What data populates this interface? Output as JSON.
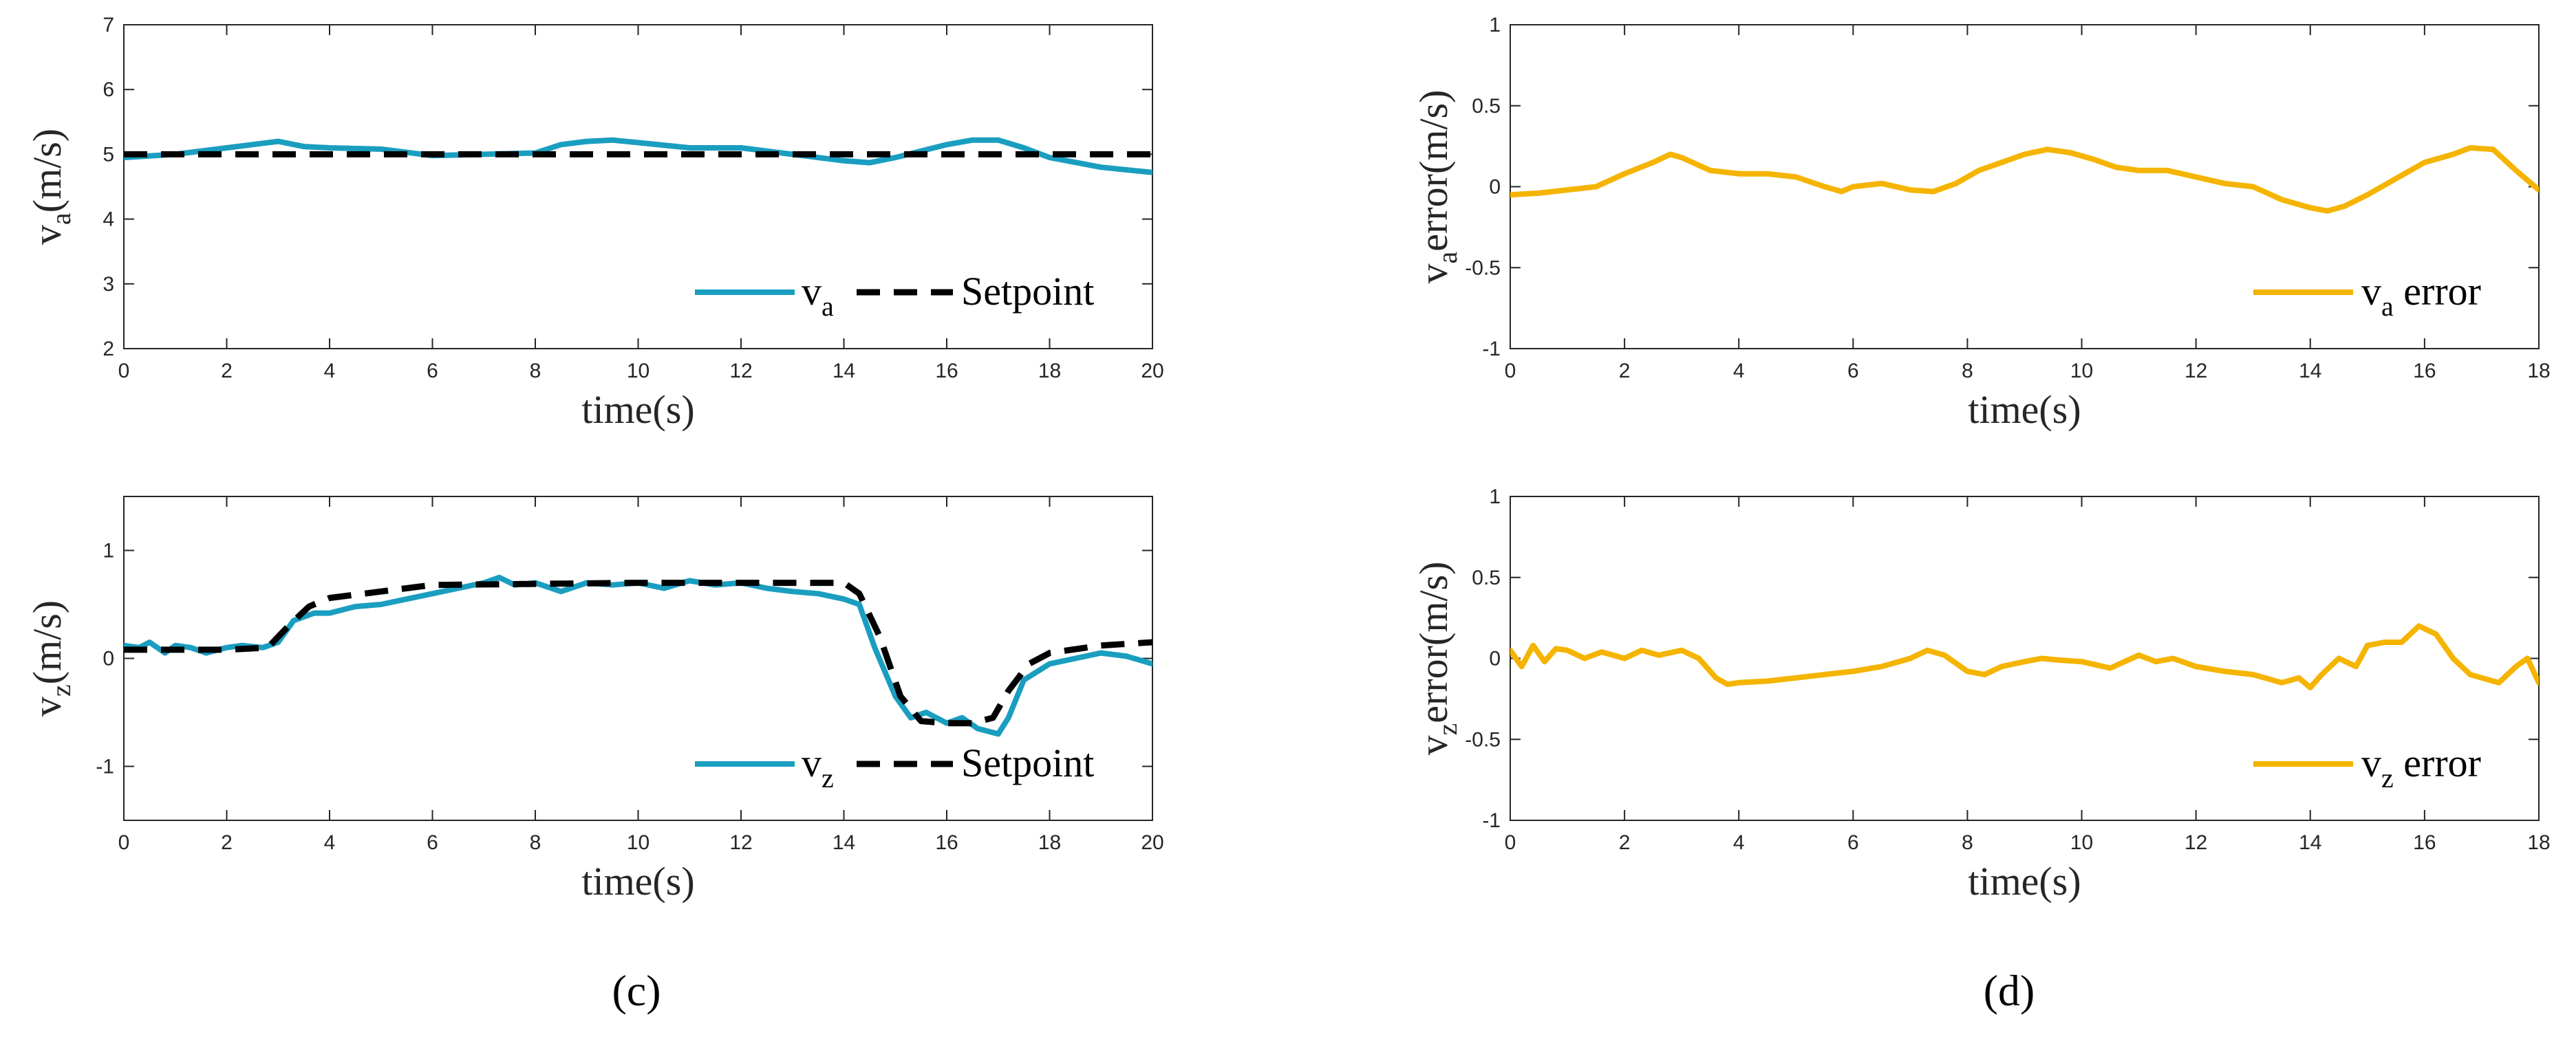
{
  "colors": {
    "measured": "#1a9ec0",
    "setpoint": "#000000",
    "error": "#f5b400",
    "axis": "#262626"
  },
  "panel_labels": {
    "c": "(c)",
    "d": "(d)"
  },
  "chart_data": [
    {
      "id": "c-top",
      "type": "line",
      "xlabel": "time(s)",
      "ylabel_main": "v",
      "ylabel_sub": "a",
      "ylabel_unit": "(m/s)",
      "xlim": [
        0,
        20
      ],
      "ylim": [
        2,
        7
      ],
      "xticks": [
        0,
        2,
        4,
        6,
        8,
        10,
        12,
        14,
        16,
        18,
        20
      ],
      "yticks": [
        2,
        3,
        4,
        5,
        6,
        7
      ],
      "legend": {
        "position": "bottom-right",
        "entries": [
          {
            "series": 0,
            "label": "v",
            "sub": "a"
          },
          {
            "series": 1,
            "label": "Setpoint",
            "sub": ""
          }
        ]
      },
      "series": [
        {
          "name": "v_a",
          "style": "solid",
          "color_key": "measured",
          "x": [
            0,
            1,
            2,
            2.5,
            3,
            3.5,
            4,
            5,
            6,
            7,
            8,
            8.5,
            9,
            9.5,
            10,
            11,
            12,
            13,
            14,
            14.5,
            15,
            16,
            16.5,
            17,
            17.5,
            18,
            19,
            20
          ],
          "y": [
            4.95,
            5.0,
            5.1,
            5.15,
            5.2,
            5.12,
            5.1,
            5.08,
            4.98,
            5.0,
            5.02,
            5.15,
            5.2,
            5.22,
            5.18,
            5.1,
            5.1,
            5.0,
            4.9,
            4.87,
            4.95,
            5.15,
            5.22,
            5.22,
            5.1,
            4.95,
            4.8,
            4.72
          ]
        },
        {
          "name": "Setpoint",
          "style": "dashed",
          "color_key": "setpoint",
          "x": [
            0,
            20
          ],
          "y": [
            5.0,
            5.0
          ]
        }
      ]
    },
    {
      "id": "c-bottom",
      "type": "line",
      "xlabel": "time(s)",
      "ylabel_main": "v",
      "ylabel_sub": "z",
      "ylabel_unit": "(m/s)",
      "xlim": [
        0,
        20
      ],
      "ylim": [
        -1.5,
        1.5
      ],
      "xticks": [
        0,
        2,
        4,
        6,
        8,
        10,
        12,
        14,
        16,
        18,
        20
      ],
      "yticks": [
        -1,
        0,
        1
      ],
      "legend": {
        "position": "bottom-right",
        "entries": [
          {
            "series": 0,
            "label": "v",
            "sub": "z"
          },
          {
            "series": 1,
            "label": "Setpoint",
            "sub": ""
          }
        ]
      },
      "series": [
        {
          "name": "v_z",
          "style": "solid",
          "color_key": "measured",
          "x": [
            0,
            0.3,
            0.5,
            0.8,
            1,
            1.3,
            1.6,
            2,
            2.3,
            2.7,
            3,
            3.3,
            3.7,
            4,
            4.5,
            5,
            5.5,
            6,
            6.5,
            7,
            7.3,
            7.6,
            8,
            8.5,
            9,
            9.5,
            10,
            10.5,
            11,
            11.5,
            12,
            12.5,
            13,
            13.5,
            14,
            14.3,
            14.6,
            15,
            15.3,
            15.6,
            16,
            16.3,
            16.6,
            17,
            17.2,
            17.5,
            18,
            18.5,
            19,
            19.5,
            20
          ],
          "y": [
            0.12,
            0.1,
            0.15,
            0.05,
            0.12,
            0.1,
            0.05,
            0.1,
            0.12,
            0.1,
            0.15,
            0.35,
            0.42,
            0.42,
            0.48,
            0.5,
            0.55,
            0.6,
            0.65,
            0.7,
            0.75,
            0.68,
            0.7,
            0.62,
            0.7,
            0.68,
            0.7,
            0.65,
            0.72,
            0.68,
            0.7,
            0.65,
            0.62,
            0.6,
            0.55,
            0.5,
            0.1,
            -0.35,
            -0.55,
            -0.5,
            -0.6,
            -0.55,
            -0.65,
            -0.7,
            -0.55,
            -0.2,
            -0.05,
            0.0,
            0.05,
            0.02,
            -0.05
          ]
        },
        {
          "name": "Setpoint",
          "style": "dashed",
          "color_key": "setpoint",
          "x": [
            0,
            1,
            2,
            2.8,
            3.2,
            3.6,
            4,
            5,
            6,
            10,
            14,
            14.3,
            14.7,
            15.1,
            15.5,
            16,
            16.5,
            16.9,
            17.2,
            17.6,
            18,
            19,
            20
          ],
          "y": [
            0.08,
            0.08,
            0.08,
            0.1,
            0.3,
            0.48,
            0.56,
            0.62,
            0.68,
            0.7,
            0.7,
            0.6,
            0.2,
            -0.35,
            -0.58,
            -0.6,
            -0.6,
            -0.55,
            -0.3,
            -0.05,
            0.05,
            0.12,
            0.15
          ]
        }
      ]
    },
    {
      "id": "d-top",
      "type": "line",
      "xlabel": "time(s)",
      "ylabel_main": "v",
      "ylabel_sub": "a",
      "ylabel_unit": "error(m/s)",
      "xlim": [
        0,
        18
      ],
      "ylim": [
        -1,
        1
      ],
      "xticks": [
        0,
        2,
        4,
        6,
        8,
        10,
        12,
        14,
        16,
        18
      ],
      "yticks": [
        -1,
        -0.5,
        0,
        0.5,
        1
      ],
      "legend": {
        "position": "bottom-right",
        "entries": [
          {
            "series": 0,
            "label": "v",
            "sub": "a",
            "after": " error"
          }
        ]
      },
      "series": [
        {
          "name": "v_a error",
          "style": "solid",
          "color_key": "error",
          "x": [
            0,
            0.5,
            1,
            1.5,
            2,
            2.5,
            2.8,
            3,
            3.5,
            4,
            4.5,
            5,
            5.5,
            5.8,
            6,
            6.5,
            7,
            7.4,
            7.8,
            8.2,
            8.6,
            9,
            9.4,
            9.8,
            10.2,
            10.6,
            11,
            11.5,
            12,
            12.5,
            13,
            13.5,
            14,
            14.3,
            14.6,
            15,
            15.5,
            16,
            16.5,
            16.8,
            17.2,
            17.6,
            18
          ],
          "y": [
            -0.05,
            -0.04,
            -0.02,
            0.0,
            0.08,
            0.15,
            0.2,
            0.18,
            0.1,
            0.08,
            0.08,
            0.06,
            0.0,
            -0.03,
            0.0,
            0.02,
            -0.02,
            -0.03,
            0.02,
            0.1,
            0.15,
            0.2,
            0.23,
            0.21,
            0.17,
            0.12,
            0.1,
            0.1,
            0.06,
            0.02,
            0.0,
            -0.08,
            -0.13,
            -0.15,
            -0.12,
            -0.05,
            0.05,
            0.15,
            0.2,
            0.24,
            0.23,
            0.1,
            -0.02
          ]
        }
      ]
    },
    {
      "id": "d-bottom",
      "type": "line",
      "xlabel": "time(s)",
      "ylabel_main": "v",
      "ylabel_sub": "z",
      "ylabel_unit": "error(m/s)",
      "xlim": [
        0,
        18
      ],
      "ylim": [
        -1,
        1
      ],
      "xticks": [
        0,
        2,
        4,
        6,
        8,
        10,
        12,
        14,
        16,
        18
      ],
      "yticks": [
        -1,
        -0.5,
        0,
        0.5,
        1
      ],
      "legend": {
        "position": "bottom-right",
        "entries": [
          {
            "series": 0,
            "label": "v",
            "sub": "z",
            "after": " error"
          }
        ]
      },
      "series": [
        {
          "name": "v_z error",
          "style": "solid",
          "color_key": "error",
          "x": [
            0,
            0.2,
            0.4,
            0.6,
            0.8,
            1,
            1.3,
            1.6,
            2,
            2.3,
            2.6,
            3,
            3.3,
            3.6,
            3.8,
            4,
            4.5,
            5,
            5.5,
            6,
            6.5,
            7,
            7.3,
            7.6,
            8,
            8.3,
            8.6,
            9,
            9.3,
            9.6,
            10,
            10.5,
            11,
            11.3,
            11.6,
            12,
            12.5,
            13,
            13.5,
            13.8,
            14,
            14.2,
            14.5,
            14.8,
            15,
            15.3,
            15.6,
            15.9,
            16.2,
            16.5,
            16.8,
            17,
            17.3,
            17.6,
            17.8,
            18
          ],
          "y": [
            0.05,
            -0.05,
            0.08,
            -0.02,
            0.06,
            0.05,
            0.0,
            0.04,
            0.0,
            0.05,
            0.02,
            0.05,
            0.0,
            -0.12,
            -0.16,
            -0.15,
            -0.14,
            -0.12,
            -0.1,
            -0.08,
            -0.05,
            0.0,
            0.05,
            0.02,
            -0.08,
            -0.1,
            -0.05,
            -0.02,
            0.0,
            -0.01,
            -0.02,
            -0.06,
            0.02,
            -0.02,
            0.0,
            -0.05,
            -0.08,
            -0.1,
            -0.15,
            -0.12,
            -0.18,
            -0.1,
            0.0,
            -0.05,
            0.08,
            0.1,
            0.1,
            0.2,
            0.15,
            0.0,
            -0.1,
            -0.12,
            -0.15,
            -0.05,
            0.0,
            -0.15
          ]
        }
      ]
    }
  ]
}
